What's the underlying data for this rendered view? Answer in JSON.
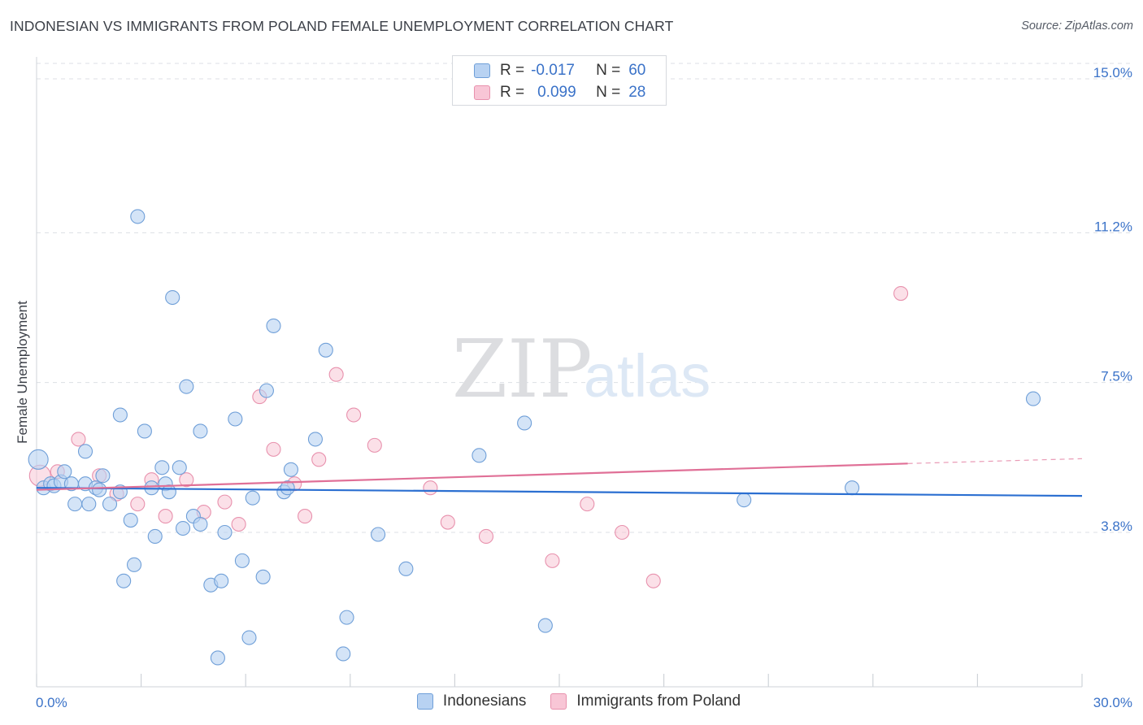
{
  "header": {
    "title": "INDONESIAN VS IMMIGRANTS FROM POLAND FEMALE UNEMPLOYMENT CORRELATION CHART",
    "source": "Source: ZipAtlas.com"
  },
  "watermark": {
    "zip": "ZIP",
    "atlas": "atlas"
  },
  "colors": {
    "blue_fill": "#b8d2f2",
    "blue_stroke": "#6f9fd8",
    "blue_line": "#2b6fd1",
    "pink_fill": "#f8c6d6",
    "pink_stroke": "#e891ad",
    "pink_line": "#e07097",
    "axis_text": "#3a72c8",
    "grid": "#dcdfe4"
  },
  "legend": {
    "rows": [
      {
        "r_label": "R =",
        "r_value": "-0.017",
        "n_label": "N =",
        "n_value": "60"
      },
      {
        "r_label": "R =",
        "r_value": "0.099",
        "n_label": "N =",
        "n_value": "28"
      }
    ]
  },
  "bottom_legend": {
    "series1": "Indonesians",
    "series2": "Immigrants from Poland"
  },
  "chart_data": {
    "type": "scatter",
    "title": "INDONESIAN VS IMMIGRANTS FROM POLAND FEMALE UNEMPLOYMENT CORRELATION CHART",
    "xlabel": "",
    "ylabel": "Female Unemployment",
    "xlim": [
      0,
      30
    ],
    "ylim": [
      0,
      15.5
    ],
    "x_tick_labels": [
      "0.0%",
      "30.0%"
    ],
    "y_ticks": [
      3.8,
      7.5,
      11.2,
      15.0
    ],
    "y_tick_labels": [
      "3.8%",
      "7.5%",
      "11.2%",
      "15.0%"
    ],
    "grid": true,
    "series": [
      {
        "name": "Indonesians",
        "r": -0.017,
        "n": 60,
        "trend": {
          "x": [
            0,
            30
          ],
          "y": [
            4.9,
            4.7
          ]
        },
        "points": [
          [
            0.05,
            5.6
          ],
          [
            0.2,
            4.9
          ],
          [
            0.4,
            5.0
          ],
          [
            0.5,
            4.95
          ],
          [
            0.7,
            5.05
          ],
          [
            0.8,
            5.3
          ],
          [
            1.0,
            5.0
          ],
          [
            1.1,
            4.5
          ],
          [
            1.4,
            5.0
          ],
          [
            1.4,
            5.8
          ],
          [
            1.5,
            4.5
          ],
          [
            1.7,
            4.9
          ],
          [
            1.8,
            4.85
          ],
          [
            1.9,
            5.2
          ],
          [
            2.1,
            4.5
          ],
          [
            2.4,
            4.8
          ],
          [
            2.4,
            6.7
          ],
          [
            2.7,
            4.1
          ],
          [
            2.8,
            3.0
          ],
          [
            2.5,
            2.6
          ],
          [
            2.9,
            11.6
          ],
          [
            3.1,
            6.3
          ],
          [
            3.3,
            4.9
          ],
          [
            3.4,
            3.7
          ],
          [
            3.6,
            5.4
          ],
          [
            3.7,
            5.0
          ],
          [
            3.8,
            4.8
          ],
          [
            3.9,
            9.6
          ],
          [
            4.1,
            5.4
          ],
          [
            4.2,
            3.9
          ],
          [
            4.3,
            7.4
          ],
          [
            4.5,
            4.2
          ],
          [
            4.7,
            4.0
          ],
          [
            4.7,
            6.3
          ],
          [
            5.0,
            2.5
          ],
          [
            5.2,
            0.7
          ],
          [
            5.3,
            2.6
          ],
          [
            5.4,
            3.8
          ],
          [
            5.7,
            6.6
          ],
          [
            5.9,
            3.1
          ],
          [
            6.1,
            1.2
          ],
          [
            6.2,
            4.65
          ],
          [
            6.5,
            2.7
          ],
          [
            6.6,
            7.3
          ],
          [
            6.8,
            8.9
          ],
          [
            7.1,
            4.8
          ],
          [
            7.2,
            4.9
          ],
          [
            7.3,
            5.35
          ],
          [
            8.0,
            6.1
          ],
          [
            8.3,
            8.3
          ],
          [
            8.8,
            0.8
          ],
          [
            8.9,
            1.7
          ],
          [
            9.8,
            3.75
          ],
          [
            10.6,
            2.9
          ],
          [
            12.7,
            5.7
          ],
          [
            14.0,
            6.5
          ],
          [
            14.6,
            1.5
          ],
          [
            20.3,
            4.6
          ],
          [
            23.4,
            4.9
          ],
          [
            28.6,
            7.1
          ]
        ]
      },
      {
        "name": "Immigrants from Poland",
        "r": 0.099,
        "n": 28,
        "trend": {
          "x": [
            0,
            25.0
          ],
          "y": [
            4.85,
            5.5
          ]
        },
        "trend_dashed": {
          "x": [
            25.0,
            30
          ],
          "y": [
            5.5,
            5.62
          ]
        },
        "points": [
          [
            0.1,
            5.2
          ],
          [
            0.6,
            5.3
          ],
          [
            1.2,
            6.1
          ],
          [
            1.8,
            5.2
          ],
          [
            2.3,
            4.75
          ],
          [
            2.9,
            4.5
          ],
          [
            3.3,
            5.1
          ],
          [
            3.7,
            4.2
          ],
          [
            4.3,
            5.1
          ],
          [
            4.8,
            4.3
          ],
          [
            5.4,
            4.55
          ],
          [
            5.8,
            4.0
          ],
          [
            6.4,
            7.15
          ],
          [
            6.8,
            5.85
          ],
          [
            7.4,
            5.0
          ],
          [
            7.7,
            4.2
          ],
          [
            8.1,
            5.6
          ],
          [
            8.6,
            7.7
          ],
          [
            9.1,
            6.7
          ],
          [
            9.7,
            5.95
          ],
          [
            11.3,
            4.9
          ],
          [
            11.8,
            4.05
          ],
          [
            12.9,
            3.7
          ],
          [
            14.8,
            3.1
          ],
          [
            15.8,
            4.5
          ],
          [
            16.8,
            3.8
          ],
          [
            17.7,
            2.6
          ],
          [
            24.8,
            9.7
          ]
        ]
      }
    ]
  }
}
